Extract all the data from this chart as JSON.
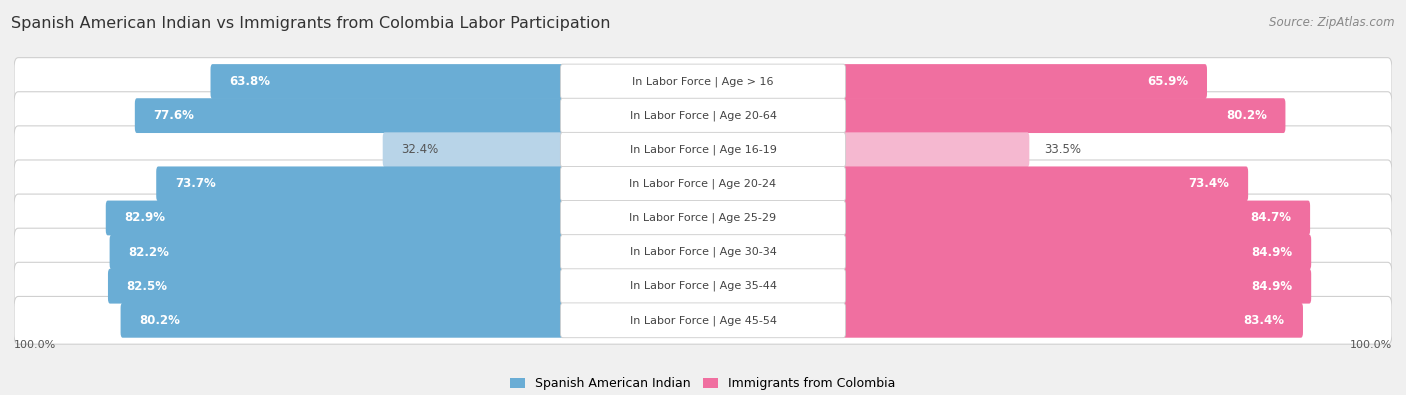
{
  "title": "Spanish American Indian vs Immigrants from Colombia Labor Participation",
  "source": "Source: ZipAtlas.com",
  "categories": [
    "In Labor Force | Age > 16",
    "In Labor Force | Age 20-64",
    "In Labor Force | Age 16-19",
    "In Labor Force | Age 20-24",
    "In Labor Force | Age 25-29",
    "In Labor Force | Age 30-34",
    "In Labor Force | Age 35-44",
    "In Labor Force | Age 45-54"
  ],
  "left_values": [
    63.8,
    77.6,
    32.4,
    73.7,
    82.9,
    82.2,
    82.5,
    80.2
  ],
  "right_values": [
    65.9,
    80.2,
    33.5,
    73.4,
    84.7,
    84.9,
    84.9,
    83.4
  ],
  "left_color_strong": "#6aadd5",
  "left_color_light": "#b8d4e8",
  "right_color_strong": "#f06fa0",
  "right_color_light": "#f5b8d0",
  "bg_color": "#f0f0f0",
  "row_bg_color": "#e0e0e0",
  "legend_left": "Spanish American Indian",
  "legend_right": "Immigrants from Colombia",
  "light_threshold": 45.0,
  "max_val": 100.0,
  "title_fontsize": 11.5,
  "source_fontsize": 8.5,
  "label_fontsize": 8.0,
  "value_fontsize": 8.5
}
